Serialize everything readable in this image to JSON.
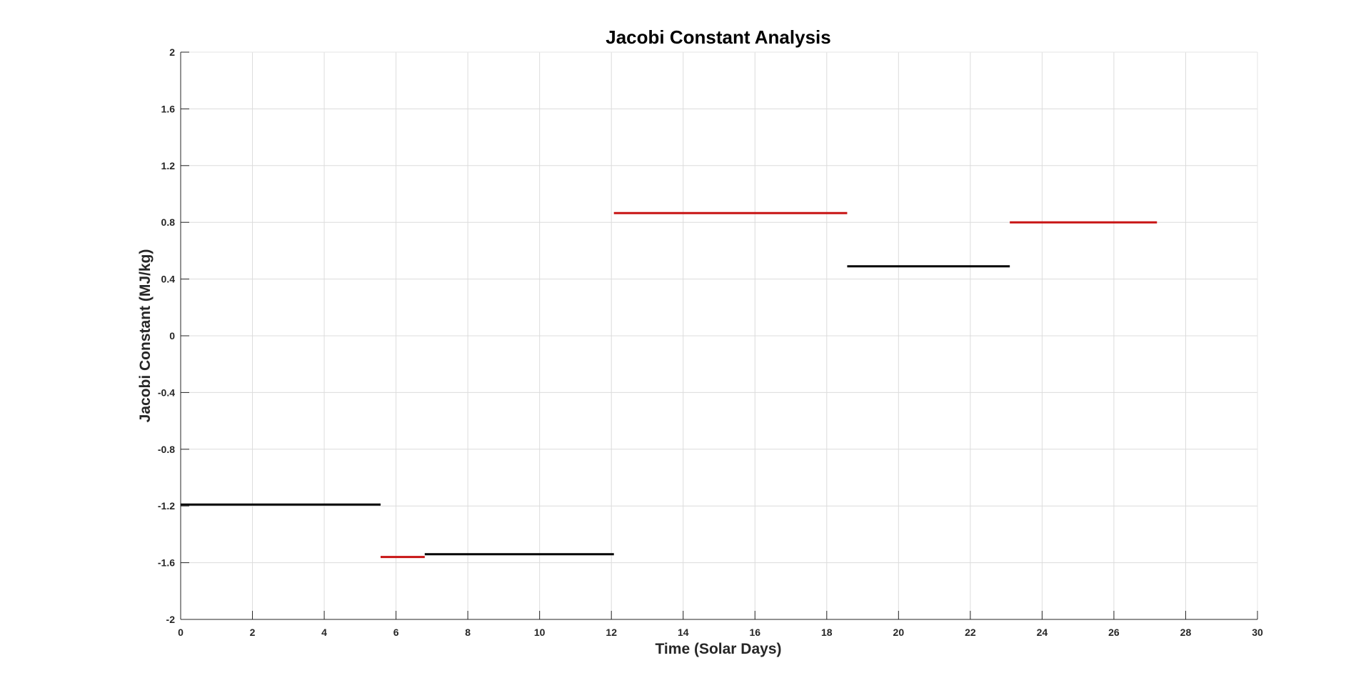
{
  "chart_data": {
    "type": "line",
    "title": "Jacobi Constant Analysis",
    "xlabel": "Time (Solar Days)",
    "ylabel": "Jacobi Constant (MJ/kg)",
    "xlim": [
      0,
      30
    ],
    "ylim": [
      -2,
      2
    ],
    "xticks": [
      0,
      2,
      4,
      6,
      8,
      10,
      12,
      14,
      16,
      18,
      20,
      22,
      24,
      26,
      28,
      30
    ],
    "yticks": [
      2,
      1.6,
      1.2,
      0.8,
      0.4,
      0,
      -0.4,
      -0.8,
      -1.2,
      -1.6,
      -2
    ],
    "xtick_labels": [
      "0",
      "2",
      "4",
      "6",
      "8",
      "10",
      "12",
      "14",
      "16",
      "18",
      "20",
      "22",
      "24",
      "26",
      "28",
      "30"
    ],
    "ytick_labels": [
      "2",
      "1.6",
      "1.2",
      "0.8",
      "0.4",
      "0",
      "-0.4",
      "-0.8",
      "-1.2",
      "-1.6",
      "-2"
    ],
    "grid": true,
    "colors": {
      "black": "#000000",
      "red": "#c81414"
    },
    "segments": [
      {
        "x": [
          0,
          5.57
        ],
        "y": [
          -1.19,
          -1.19
        ],
        "color": "#000000"
      },
      {
        "x": [
          5.57,
          6.8
        ],
        "y": [
          -1.56,
          -1.56
        ],
        "color": "#c81414"
      },
      {
        "x": [
          6.8,
          12.07
        ],
        "y": [
          -1.54,
          -1.54
        ],
        "color": "#000000"
      },
      {
        "x": [
          12.07,
          18.57
        ],
        "y": [
          0.865,
          0.865
        ],
        "color": "#c81414"
      },
      {
        "x": [
          18.57,
          23.1
        ],
        "y": [
          0.49,
          0.49
        ],
        "color": "#000000"
      },
      {
        "x": [
          23.1,
          27.2
        ],
        "y": [
          0.8,
          0.8
        ],
        "color": "#c81414"
      }
    ]
  }
}
